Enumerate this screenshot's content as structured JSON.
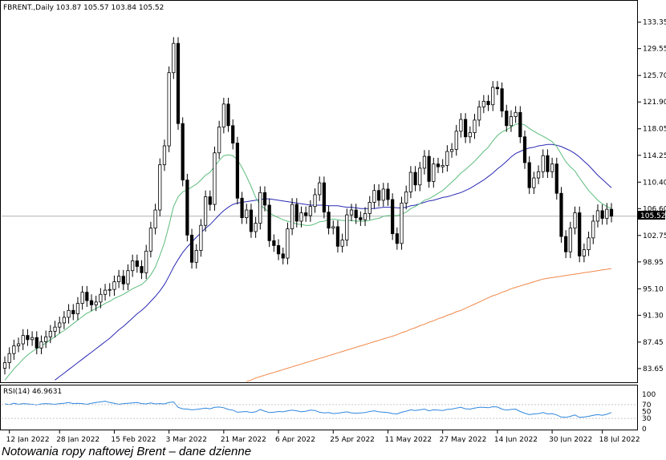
{
  "chart_data": {
    "type": "candlestick",
    "header": "FBRENT.,Daily  103.87 105.57 103.84 105.52",
    "last_price_label": "105.52",
    "last_price": 105.52,
    "y_ticks": [
      "133.35",
      "129.55",
      "125.70",
      "121.90",
      "118.05",
      "114.25",
      "110.40",
      "106.60",
      "102.75",
      "98.95",
      "95.10",
      "91.30",
      "87.45",
      "83.65"
    ],
    "ylim": [
      81.8,
      136.3
    ],
    "x_ticks": [
      "12 Jan 2022",
      "28 Jan 2022",
      "15 Feb 2022",
      "3 Mar 2022",
      "21 Mar 2022",
      "6 Apr 2022",
      "25 Apr 2022",
      "11 May 2022",
      "27 May 2022",
      "14 Jun 2022",
      "30 Jun 2022",
      "18 Jul 2022"
    ],
    "candles_close": [
      84.5,
      85.8,
      86.9,
      87.2,
      88.4,
      87.8,
      88.1,
      86.6,
      87.5,
      88.2,
      89.0,
      89.6,
      90.2,
      91.0,
      92.0,
      91.5,
      93.0,
      94.6,
      93.4,
      92.8,
      93.2,
      94.3,
      94.9,
      95.0,
      96.1,
      96.9,
      95.8,
      97.7,
      99.1,
      98.3,
      97.4,
      100.5,
      103.8,
      106.4,
      112.9,
      115.6,
      126.1,
      130.3,
      118.8,
      110.7,
      102.8,
      98.9,
      100.6,
      104.2,
      108.3,
      107.2,
      114.6,
      118.3,
      121.6,
      118.5,
      116.0,
      108.1,
      105.3,
      106.4,
      103.3,
      104.5,
      108.9,
      107.1,
      102.0,
      101.3,
      100.1,
      99.5,
      103.7,
      107.2,
      104.8,
      106.0,
      105.6,
      106.9,
      108.6,
      110.3,
      106.1,
      103.8,
      104.0,
      101.2,
      102.1,
      105.7,
      106.4,
      105.3,
      105.0,
      105.9,
      107.5,
      109.2,
      107.8,
      109.4,
      107.9,
      103.0,
      101.6,
      107.4,
      109.0,
      111.8,
      110.0,
      112.4,
      114.1,
      110.5,
      113.0,
      112.6,
      112.8,
      114.8,
      115.1,
      117.7,
      119.4,
      116.9,
      117.5,
      119.3,
      121.2,
      122.0,
      121.5,
      124.0,
      123.8,
      120.6,
      118.5,
      119.8,
      120.4,
      116.9,
      113.2,
      109.6,
      111.0,
      111.9,
      114.2,
      111.9,
      113.0,
      108.8,
      102.6,
      100.4,
      103.8,
      106.0,
      99.8,
      100.7,
      102.4,
      104.8,
      106.3,
      105.2,
      106.5,
      105.52
    ],
    "ma_fast": [
      82.0,
      82.8,
      83.6,
      84.3,
      85.0,
      85.6,
      86.1,
      86.5,
      86.9,
      87.3,
      87.8,
      88.2,
      88.7,
      89.1,
      89.6,
      90.1,
      90.6,
      91.1,
      91.6,
      91.9,
      92.3,
      92.6,
      93.0,
      93.3,
      93.7,
      94.0,
      94.3,
      94.7,
      95.1,
      95.4,
      95.7,
      96.3,
      97.1,
      98.2,
      99.9,
      101.7,
      104.2,
      106.9,
      108.3,
      109.0,
      109.3,
      109.7,
      110.1,
      110.7,
      111.4,
      111.8,
      112.7,
      113.5,
      114.2,
      114.3,
      114.2,
      113.6,
      112.5,
      111.2,
      109.8,
      108.2,
      107.1,
      106.6,
      106.0,
      105.6,
      105.3,
      105.0,
      104.8,
      104.6,
      104.4,
      104.3,
      104.2,
      104.2,
      104.4,
      104.7,
      104.8,
      105.0,
      105.1,
      105.0,
      104.9,
      104.9,
      104.9,
      104.8,
      104.8,
      104.8,
      104.9,
      105.1,
      105.2,
      105.5,
      105.6,
      105.6,
      105.6,
      105.8,
      106.1,
      106.6,
      106.9,
      107.3,
      107.8,
      108.0,
      108.4,
      108.8,
      109.2,
      109.8,
      110.4,
      111.0,
      111.7,
      112.2,
      112.8,
      113.4,
      114.1,
      114.8,
      115.4,
      116.3,
      117.1,
      117.6,
      117.9,
      118.3,
      118.7,
      118.8,
      118.6,
      118.1,
      117.7,
      117.3,
      117.0,
      116.6,
      116.2,
      115.5,
      114.4,
      113.3,
      112.6,
      112.0,
      111.0,
      110.1,
      109.2,
      108.5,
      107.8,
      107.3,
      106.9,
      106.6
    ],
    "ma_slow": [
      null,
      null,
      null,
      null,
      null,
      null,
      null,
      null,
      null,
      null,
      null,
      82.0,
      82.5,
      83.0,
      83.5,
      84.0,
      84.5,
      85.0,
      85.5,
      86.0,
      86.5,
      87.0,
      87.5,
      88.0,
      88.6,
      89.2,
      89.7,
      90.3,
      90.9,
      91.5,
      92.0,
      92.6,
      93.3,
      94.0,
      94.8,
      95.7,
      96.9,
      98.2,
      99.3,
      100.3,
      101.1,
      101.8,
      102.5,
      103.1,
      103.8,
      104.3,
      105.0,
      105.7,
      106.3,
      106.8,
      107.2,
      107.4,
      107.5,
      107.6,
      107.7,
      107.8,
      107.9,
      108.0,
      108.0,
      107.9,
      107.8,
      107.7,
      107.6,
      107.5,
      107.4,
      107.3,
      107.2,
      107.1,
      107.1,
      107.1,
      107.1,
      107.0,
      107.0,
      107.0,
      106.9,
      106.8,
      106.8,
      106.7,
      106.6,
      106.6,
      106.6,
      106.6,
      106.7,
      106.8,
      106.8,
      106.8,
      106.7,
      106.7,
      106.8,
      107.0,
      107.1,
      107.3,
      107.5,
      107.7,
      107.8,
      108.0,
      108.2,
      108.3,
      108.5,
      108.7,
      108.9,
      109.2,
      109.5,
      109.9,
      110.3,
      110.7,
      111.2,
      111.7,
      112.3,
      112.8,
      113.4,
      114.0,
      114.5,
      114.8,
      115.1,
      115.3,
      115.4,
      115.6,
      115.7,
      115.8,
      115.8,
      115.7,
      115.5,
      115.2,
      114.9,
      114.5,
      114.0,
      113.4,
      112.8,
      112.1,
      111.4,
      110.8,
      110.2,
      109.6
    ],
    "ma_200": [
      null,
      null,
      null,
      null,
      null,
      null,
      null,
      null,
      null,
      null,
      null,
      null,
      null,
      null,
      null,
      null,
      null,
      null,
      null,
      null,
      null,
      null,
      null,
      null,
      null,
      null,
      null,
      null,
      null,
      null,
      null,
      null,
      null,
      null,
      null,
      null,
      null,
      null,
      null,
      null,
      null,
      null,
      null,
      null,
      null,
      null,
      null,
      null,
      null,
      null,
      null,
      null,
      null,
      81.8,
      82.0,
      82.3,
      82.5,
      82.7,
      82.9,
      83.1,
      83.3,
      83.5,
      83.7,
      83.9,
      84.1,
      84.3,
      84.5,
      84.7,
      84.9,
      85.1,
      85.3,
      85.5,
      85.7,
      85.9,
      86.1,
      86.3,
      86.5,
      86.7,
      86.9,
      87.1,
      87.3,
      87.5,
      87.7,
      87.9,
      88.1,
      88.3,
      88.5,
      88.8,
      89.0,
      89.3,
      89.5,
      89.8,
      90.0,
      90.3,
      90.5,
      90.8,
      91.0,
      91.3,
      91.5,
      91.8,
      92.0,
      92.3,
      92.6,
      92.9,
      93.2,
      93.5,
      93.8,
      94.1,
      94.3,
      94.6,
      94.8,
      95.1,
      95.3,
      95.5,
      95.7,
      95.9,
      96.1,
      96.3,
      96.5,
      96.6,
      96.7,
      96.8,
      96.9,
      97.0,
      97.1,
      97.2,
      97.3,
      97.4,
      97.5,
      97.6,
      97.7,
      97.8,
      97.9,
      98.0
    ],
    "rsi": {
      "label": "RSI(14) 46.9631",
      "y_ticks": [
        "100",
        "70",
        "50",
        "30",
        "0"
      ],
      "ylim": [
        0,
        100
      ],
      "values": [
        72,
        70,
        74,
        71,
        73,
        72,
        71,
        69,
        72,
        73,
        72,
        71,
        73,
        74,
        76,
        73,
        74,
        73,
        71,
        74,
        76,
        78,
        80,
        76,
        74,
        71,
        73,
        74,
        75,
        76,
        73,
        72,
        75,
        72,
        73,
        72,
        76,
        78,
        62,
        58,
        57,
        55,
        56,
        58,
        60,
        58,
        62,
        63,
        61,
        56,
        54,
        48,
        49,
        50,
        47,
        49,
        56,
        51,
        47,
        48,
        50,
        49,
        52,
        54,
        52,
        49,
        51,
        54,
        53,
        48,
        46,
        47,
        44,
        45,
        47,
        49,
        46,
        45,
        46,
        47,
        50,
        52,
        49,
        48,
        47,
        44,
        43,
        48,
        51,
        55,
        53,
        55,
        57,
        52,
        55,
        54,
        53,
        56,
        57,
        60,
        62,
        58,
        57,
        60,
        62,
        62,
        61,
        64,
        63,
        57,
        54,
        56,
        57,
        50,
        45,
        41,
        43,
        44,
        47,
        43,
        44,
        40,
        34,
        33,
        36,
        40,
        33,
        34,
        36,
        39,
        41,
        39,
        42,
        46.96
      ]
    }
  },
  "caption": "Notowania ropy naftowej Brent – dane dzienne",
  "colors": {
    "bull": "#ffffff",
    "bear": "#000000",
    "ma_fast": "#5cbc7c",
    "ma_slow": "#2a2ab4",
    "ma_200": "#f0884a",
    "rsi": "#2e86de",
    "grid": "#c8c8c8",
    "last_price_line": "#b0b0b0"
  }
}
